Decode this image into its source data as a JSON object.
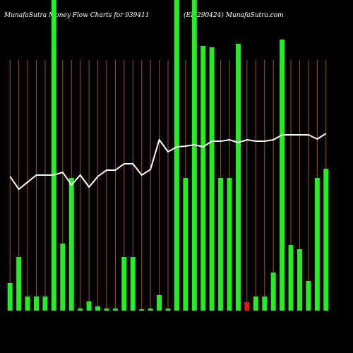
{
  "chart_data": {
    "type": "bar",
    "title": "MunafaSutra  Money Flow  Charts for 939411",
    "subtitle": "(EP 290424) MunafaSutra.com",
    "categories": [
      null,
      null,
      null,
      null,
      null,
      null,
      null,
      null,
      null,
      null,
      null,
      null,
      null,
      null,
      null,
      null,
      null,
      null,
      null,
      null,
      null,
      null,
      null,
      null,
      null,
      null,
      null,
      null,
      null,
      null,
      null,
      null,
      null,
      null,
      null,
      null,
      null
    ],
    "ylim": [
      0,
      440
    ],
    "series": [
      {
        "type": "bar",
        "colors": [
          "#22ee22",
          "#22ee22",
          "#22ee22",
          "#22ee22",
          "#22ee22",
          "#22ee22",
          "#22ee22",
          "#22ee22",
          "#22ee22",
          "#22ee22",
          "#22ee22",
          "#22ee22",
          "#22ee22",
          "#22ee22",
          "#22ee22",
          "#22ee22",
          "#22ee22",
          "#22ee22",
          "#22ee22",
          "#22ee22",
          "#22ee22",
          "#22ee22",
          "#22ee22",
          "#22ee22",
          "#22ee22",
          "#22ee22",
          "#22ee22",
          "#ee1111",
          "#22ee22",
          "#22ee22",
          "#22ee22",
          "#22ee22",
          "#22ee22",
          "#22ee22",
          "#22ee22",
          "#22ee22",
          "#22ee22"
        ],
        "values": [
          39,
          76,
          20,
          20,
          20,
          440,
          95,
          188,
          3,
          13,
          6,
          3,
          3,
          76,
          76,
          2,
          3,
          22,
          3,
          440,
          188,
          440,
          375,
          373,
          188,
          188,
          378,
          12,
          20,
          20,
          54,
          384,
          93,
          87,
          42,
          188,
          201
        ]
      },
      {
        "type": "line",
        "color": "#ffffff",
        "values": [
          190,
          172,
          182,
          192,
          192,
          192,
          196,
          178,
          192,
          175,
          190,
          199,
          199,
          208,
          208,
          192,
          200,
          242,
          225,
          232,
          233,
          235,
          232,
          240,
          240,
          242,
          238,
          242,
          240,
          240,
          242,
          249,
          249,
          249,
          249,
          243,
          251
        ]
      }
    ]
  }
}
